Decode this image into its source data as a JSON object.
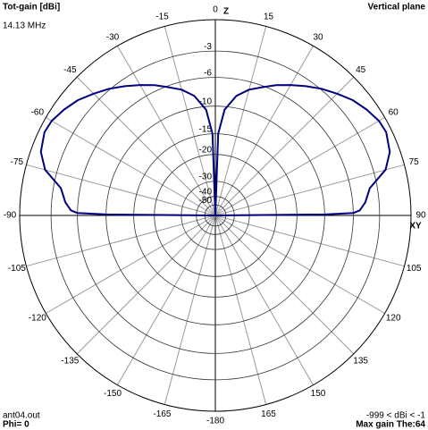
{
  "chart_data": {
    "type": "polar",
    "title": "Tot-gain [dBi]",
    "subtitle": "14.13 MHz",
    "plane_label": "Vertical plane",
    "axis_top_label": "Z",
    "axis_right_label": "XY",
    "file_label": "ant04.out",
    "phi_label": "Phi= 0",
    "range_label": "-999 < dBi < -1",
    "max_gain_label": "Max gain The:64",
    "rscale": "arrl",
    "rlim": [
      -999,
      0
    ],
    "rticks": [
      -3,
      -6,
      -10,
      -15,
      -20,
      -30,
      -40,
      -50
    ],
    "angle_ticks": [
      0,
      15,
      30,
      45,
      60,
      75,
      90,
      105,
      120,
      135,
      150,
      165,
      -180,
      -165,
      -150,
      -135,
      -120,
      -105,
      -90,
      -75,
      -60,
      -45,
      -30,
      -15
    ],
    "series": [
      {
        "color": "#000080",
        "x": [
          -90,
          -89.5,
          -89,
          -88,
          -85,
          -80,
          -75,
          -70,
          -64,
          -60,
          -55,
          -50,
          -45,
          -40,
          -35,
          -30,
          -25,
          -20,
          -15,
          -10,
          -5,
          -2,
          0,
          2,
          5,
          10,
          15,
          20,
          25,
          30,
          35,
          40,
          45,
          50,
          55,
          60,
          64,
          70,
          75,
          80,
          85,
          88,
          89,
          89.5,
          90
        ],
        "values": [
          -999,
          -10,
          -6,
          -5.2,
          -4.5,
          -3.8,
          -1.8,
          -0.9,
          -0.5,
          -0.6,
          -1,
          -1.5,
          -2.2,
          -2.9,
          -3.7,
          -4.5,
          -5.3,
          -6.2,
          -7,
          -8.2,
          -10.5,
          -15,
          -999,
          -15,
          -10.5,
          -8.2,
          -7,
          -6.2,
          -5.3,
          -4.5,
          -3.7,
          -2.9,
          -2.2,
          -1.5,
          -1,
          -0.6,
          -0.5,
          -0.9,
          -1.8,
          -3.8,
          -4.5,
          -5.2,
          -6,
          -10,
          -999
        ]
      }
    ]
  }
}
